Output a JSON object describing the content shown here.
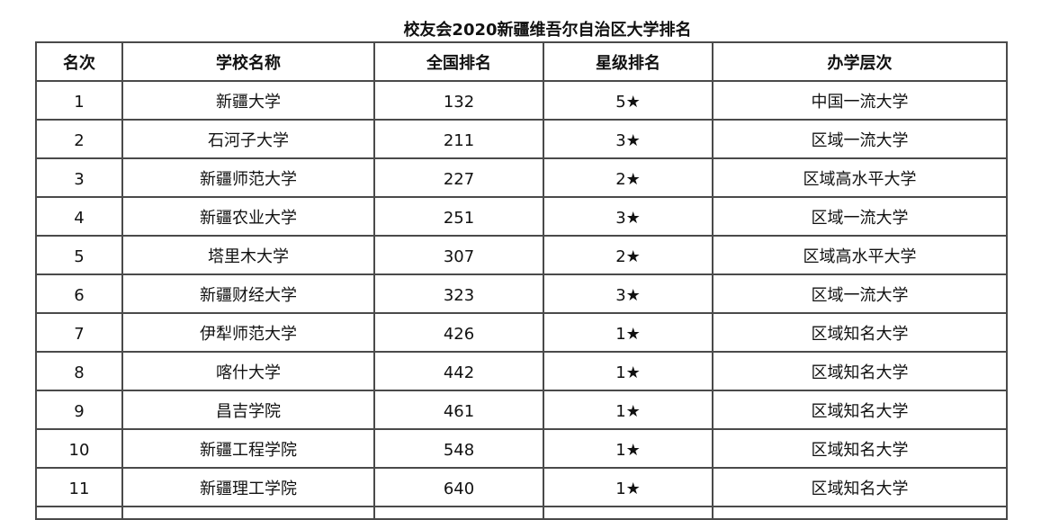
{
  "title": "校友会2020新疆维吾尔自治区大学排名",
  "headers": [
    "名次",
    "学校名称",
    "全国排名",
    "星级排名",
    "办学层次"
  ],
  "rows": [
    [
      "1",
      "新疆大学",
      "132",
      "5★",
      "中国一流大学"
    ],
    [
      "2",
      "石河子大学",
      "211",
      "3★",
      "区域一流大学"
    ],
    [
      "3",
      "新疆师范大学",
      "227",
      "2★",
      "区域高水平大学"
    ],
    [
      "4",
      "新疆农业大学",
      "251",
      "3★",
      "区域一流大学"
    ],
    [
      "5",
      "塔里木大学",
      "307",
      "2★",
      "区域高水平大学"
    ],
    [
      "6",
      "新疆财经大学",
      "323",
      "3★",
      "区域一流大学"
    ],
    [
      "7",
      "伊犁师范大学",
      "426",
      "1★",
      "区域知名大学"
    ],
    [
      "8",
      "喀什大学",
      "442",
      "1★",
      "区域知名大学"
    ],
    [
      "9",
      "昌吉学院",
      "461",
      "1★",
      "区域知名大学"
    ],
    [
      "10",
      "新疆工程学院",
      "548",
      "1★",
      "区域知名大学"
    ],
    [
      "11",
      "新疆理工学院",
      "640",
      "1★",
      "区域知名大学"
    ]
  ]
}
